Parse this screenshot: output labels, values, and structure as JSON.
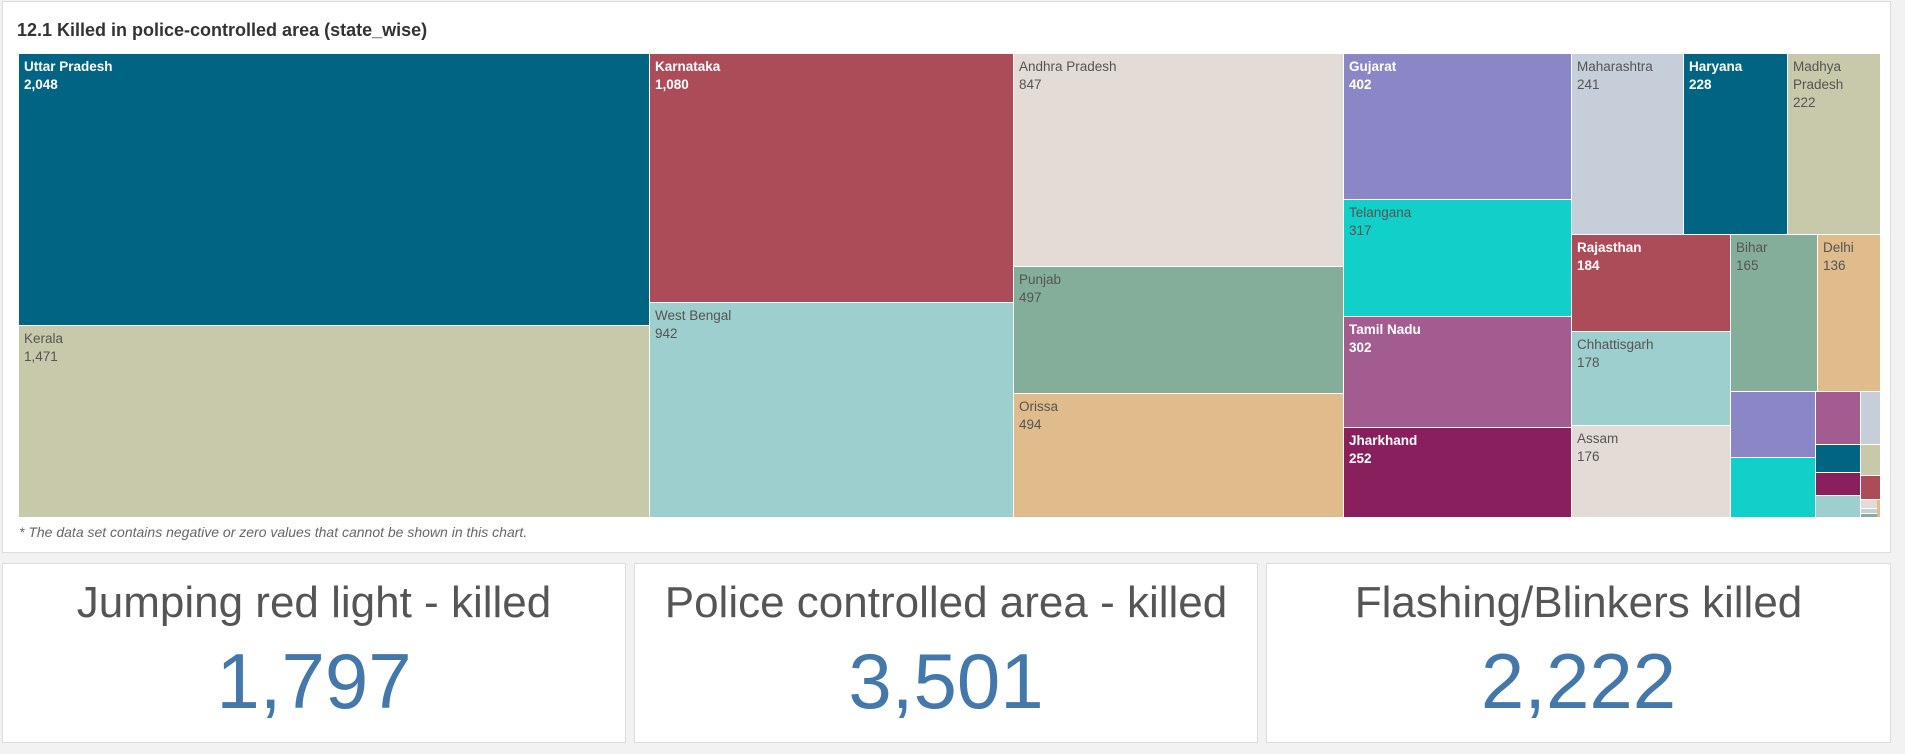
{
  "chart": {
    "title": "12.1 Killed in police-controlled area (state_wise)",
    "footnote": "* The data set contains negative or zero values that cannot be shown in this chart."
  },
  "chart_data": {
    "type": "treemap",
    "title": "12.1 Killed in police-controlled area (state_wise)",
    "items": [
      {
        "name": "Uttar Pradesh",
        "value": 2048,
        "label": "2,048",
        "color": "#006482"
      },
      {
        "name": "Kerala",
        "value": 1471,
        "label": "1,471",
        "color": "#c8c8aa"
      },
      {
        "name": "Karnataka",
        "value": 1080,
        "label": "1,080",
        "color": "#ac4c58"
      },
      {
        "name": "West Bengal",
        "value": 942,
        "label": "942",
        "color": "#9ccfcd"
      },
      {
        "name": "Andhra Pradesh",
        "value": 847,
        "label": "847",
        "color": "#e3dbd6"
      },
      {
        "name": "Punjab",
        "value": 497,
        "label": "497",
        "color": "#84ae99"
      },
      {
        "name": "Orissa",
        "value": 494,
        "label": "494",
        "color": "#e0bb8c"
      },
      {
        "name": "Gujarat",
        "value": 402,
        "label": "402",
        "color": "#8b87c6"
      },
      {
        "name": "Telangana",
        "value": 317,
        "label": "317",
        "color": "#11cfc9"
      },
      {
        "name": "Tamil Nadu",
        "value": 302,
        "label": "302",
        "color": "#a35c8f"
      },
      {
        "name": "Jharkhand",
        "value": 252,
        "label": "252",
        "color": "#891f5c"
      },
      {
        "name": "Maharashtra",
        "value": 241,
        "label": "241",
        "color": "#c6cfd9"
      },
      {
        "name": "Haryana",
        "value": 228,
        "label": "228",
        "color": "#006482"
      },
      {
        "name": "Madhya Pradesh",
        "value": 222,
        "label": "222",
        "color": "#c8c8aa"
      },
      {
        "name": "Rajasthan",
        "value": 184,
        "label": "184",
        "color": "#ac4c58"
      },
      {
        "name": "Chhattisgarh",
        "value": 178,
        "label": "178",
        "color": "#9ccfcd"
      },
      {
        "name": "Assam",
        "value": 176,
        "label": "176",
        "color": "#e3dbd6"
      },
      {
        "name": "Bihar",
        "value": 165,
        "label": "165",
        "color": "#84ae99"
      },
      {
        "name": "Delhi",
        "value": 136,
        "label": "136",
        "color": "#e0bb8c"
      }
    ],
    "unlabeled_tiles_colors": [
      "#8b87c6",
      "#11cfc9",
      "#a35c8f",
      "#c6cfd9",
      "#006482",
      "#c8c8aa",
      "#891f5c",
      "#ac4c58",
      "#9ccfcd",
      "#e3dbd6",
      "#c6cfd9",
      "#84ae99",
      "#e0bb8c"
    ]
  },
  "kpis": [
    {
      "label": "Jumping red light - killed",
      "value": "1,797"
    },
    {
      "label": "Police controlled area - killed",
      "value": "3,501"
    },
    {
      "label": "Flashing/Blinkers killed",
      "value": "2,222"
    }
  ]
}
